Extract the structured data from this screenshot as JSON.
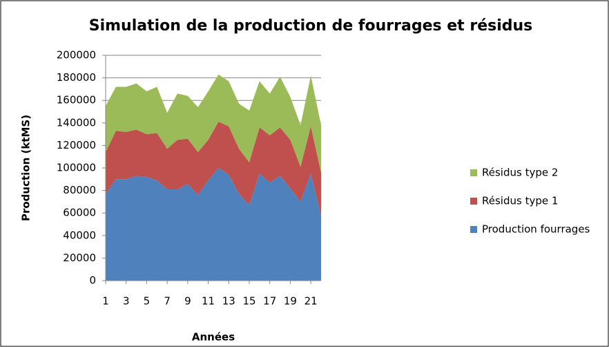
{
  "chart_data": {
    "type": "stacked-area",
    "title": "Simulation de la production de fourrages et résidus",
    "x_label": "Années",
    "y_label": "Production (ktMS)",
    "x": [
      1,
      2,
      3,
      4,
      5,
      6,
      7,
      8,
      9,
      10,
      11,
      12,
      13,
      14,
      15,
      16,
      17,
      18,
      19,
      20,
      21,
      22
    ],
    "xlim": [
      1,
      22
    ],
    "xticks": [
      1,
      3,
      5,
      7,
      9,
      11,
      13,
      15,
      17,
      19,
      21
    ],
    "ylim": [
      0,
      200000
    ],
    "yticks": [
      0,
      20000,
      40000,
      60000,
      80000,
      100000,
      120000,
      140000,
      160000,
      180000,
      200000
    ],
    "grid": true,
    "legend": "right",
    "series": [
      {
        "name": "Production fourrages",
        "color": "#4f81bd",
        "values": [
          77000,
          90000,
          90000,
          93000,
          92000,
          89000,
          81000,
          81000,
          86000,
          76000,
          89000,
          100000,
          94000,
          77000,
          67000,
          95000,
          87000,
          93000,
          82000,
          70000,
          95000,
          58000
        ]
      },
      {
        "name": "Résidus type 1",
        "color": "#c0504d",
        "values": [
          37000,
          43000,
          42000,
          41000,
          38000,
          42000,
          36000,
          44000,
          40000,
          38000,
          36000,
          41000,
          43000,
          40000,
          38000,
          41000,
          42000,
          43000,
          43000,
          31000,
          42000,
          38000
        ]
      },
      {
        "name": "Résidus type 2",
        "color": "#9bbb59",
        "values": [
          41000,
          39000,
          40000,
          41000,
          38000,
          41000,
          32000,
          41000,
          38000,
          40000,
          43000,
          42000,
          40000,
          40000,
          46000,
          41000,
          37000,
          45000,
          38000,
          37000,
          45000,
          42000
        ]
      }
    ]
  }
}
